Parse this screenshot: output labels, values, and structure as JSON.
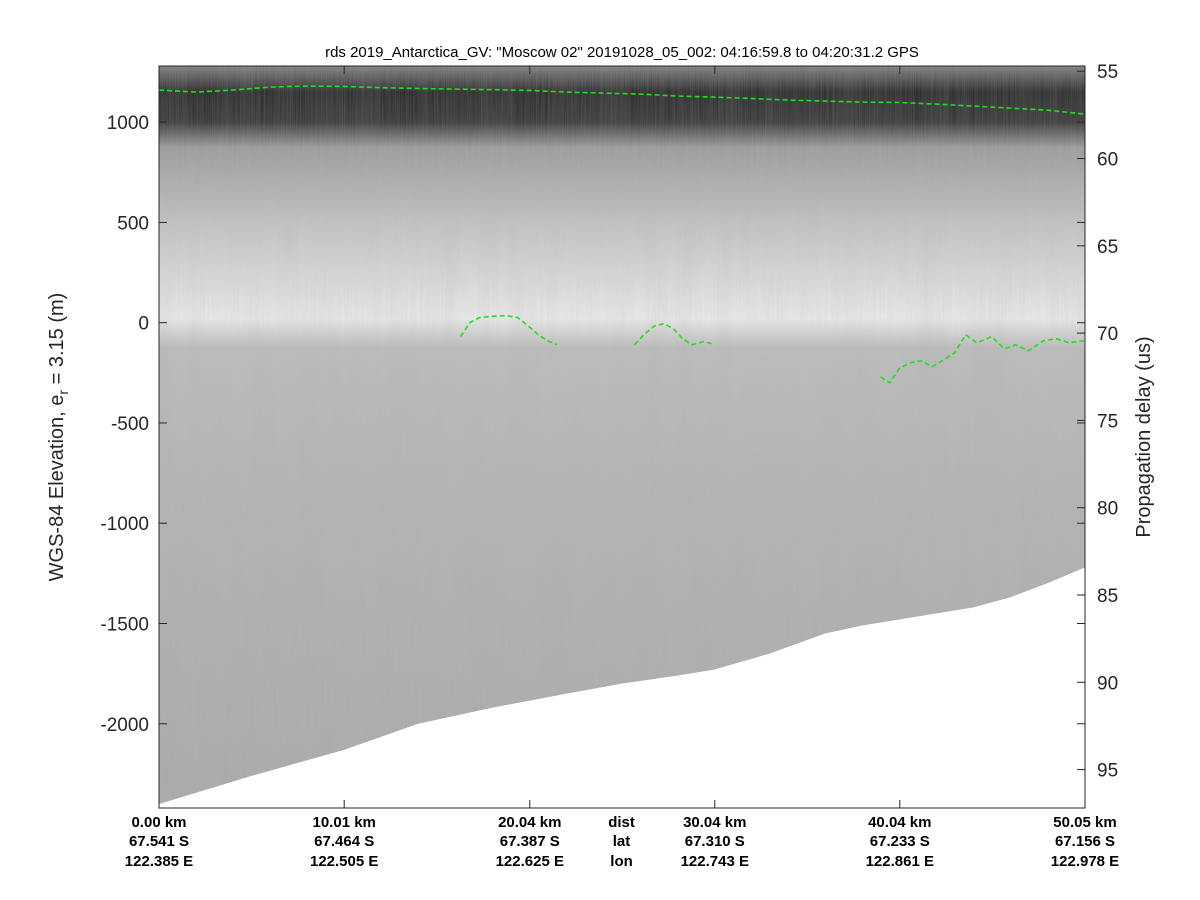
{
  "chart_data": {
    "type": "heatmap",
    "title": "rds 2019_Antarctica_GV: \"Moscow 02\"  20191028_05_002: 04:16:59.8 to 04:20:31.2 GPS",
    "ylabel_left_main": "WGS-84 Elevation, e",
    "ylabel_left_sub": "r",
    "ylabel_left_tail": " = 3.15 (m)",
    "ylabel_right": "Propagation delay (us)",
    "colormap": "gray",
    "grid": false,
    "x_range_km": [
      0,
      50.05
    ],
    "ylim_left_m": [
      -2420,
      1280
    ],
    "ylim_right_us": [
      54.7,
      97.2
    ],
    "left_ticks": [
      1000,
      500,
      0,
      -500,
      -1000,
      -1500,
      -2000
    ],
    "left_tick_labels": [
      "1000",
      "500",
      "0",
      "-500",
      "-1000",
      "-1500",
      "-2000"
    ],
    "right_ticks": [
      55,
      60,
      65,
      70,
      75,
      80,
      85,
      90,
      95
    ],
    "right_tick_labels": [
      "55",
      "60",
      "65",
      "70",
      "75",
      "80",
      "85",
      "90",
      "95"
    ],
    "x_ticks": [
      {
        "km": 0.0,
        "dist": "0.00 km",
        "lat": "67.541 S",
        "lon": "122.385 E"
      },
      {
        "km": 10.01,
        "dist": "10.01 km",
        "lat": "67.464 S",
        "lon": "122.505 E"
      },
      {
        "km": 20.04,
        "dist": "20.04 km",
        "lat": "67.387 S",
        "lon": "122.625 E"
      },
      {
        "km": 30.04,
        "dist": "30.04 km",
        "lat": "67.310 S",
        "lon": "122.743 E"
      },
      {
        "km": 40.04,
        "dist": "40.04 km",
        "lat": "67.233 S",
        "lon": "122.861 E"
      },
      {
        "km": 50.05,
        "dist": "50.05 km",
        "lat": "67.156 S",
        "lon": "122.978 E"
      }
    ],
    "row_labels": [
      "dist",
      "lat",
      "lon"
    ],
    "row_label_km": 25.0,
    "series": [
      {
        "name": "",
        "color": "#22dd22",
        "style": "dashed",
        "x_km": [
          0,
          2,
          4,
          6,
          8,
          10,
          12,
          14,
          16,
          18,
          20,
          22,
          24,
          26,
          28,
          30,
          32,
          34,
          36,
          38,
          40,
          42,
          44,
          46,
          48,
          50.05
        ],
        "y_m": [
          1160,
          1150,
          1160,
          1175,
          1180,
          1178,
          1172,
          1168,
          1165,
          1162,
          1158,
          1150,
          1145,
          1140,
          1130,
          1125,
          1118,
          1110,
          1105,
          1100,
          1098,
          1090,
          1080,
          1070,
          1060,
          1040
        ]
      },
      {
        "name": "",
        "color": "#22dd22",
        "style": "dashed",
        "x_km": [
          16.3,
          16.8,
          17.3,
          18.0,
          18.8,
          19.4,
          20.0,
          20.5,
          21.0,
          21.5
        ],
        "y_m": [
          -70,
          0,
          25,
          32,
          35,
          25,
          -20,
          -60,
          -90,
          -110
        ]
      },
      {
        "name": "",
        "color": "#22dd22",
        "style": "dashed",
        "x_km": [
          25.7,
          26.2,
          26.8,
          27.3,
          27.8,
          28.3,
          28.8,
          29.4,
          29.9
        ],
        "y_m": [
          -110,
          -60,
          -15,
          -5,
          -30,
          -80,
          -110,
          -95,
          -105
        ]
      },
      {
        "name": "",
        "color": "#22dd22",
        "style": "dashed",
        "x_km": [
          39.0,
          39.5,
          40.0,
          40.6,
          41.2,
          41.8,
          42.5,
          43.0,
          43.6,
          44.2,
          45.0,
          45.7,
          46.3,
          47.0,
          47.8,
          48.5,
          49.2,
          50.0
        ],
        "y_m": [
          -270,
          -300,
          -230,
          -200,
          -190,
          -220,
          -180,
          -150,
          -60,
          -100,
          -70,
          -130,
          -110,
          -140,
          -90,
          -80,
          -100,
          -90
        ]
      }
    ],
    "bed_floor": {
      "x_km": [
        0,
        5,
        10,
        14,
        16,
        18,
        22,
        25,
        28,
        30,
        33,
        36,
        38,
        40,
        42,
        44,
        46,
        48,
        50.05
      ],
      "y_m": [
        -2400,
        -2260,
        -2130,
        -2000,
        -1960,
        -1920,
        -1850,
        -1800,
        -1760,
        -1730,
        -1650,
        -1550,
        -1510,
        -1480,
        -1450,
        -1420,
        -1370,
        -1300,
        -1220
      ]
    }
  }
}
